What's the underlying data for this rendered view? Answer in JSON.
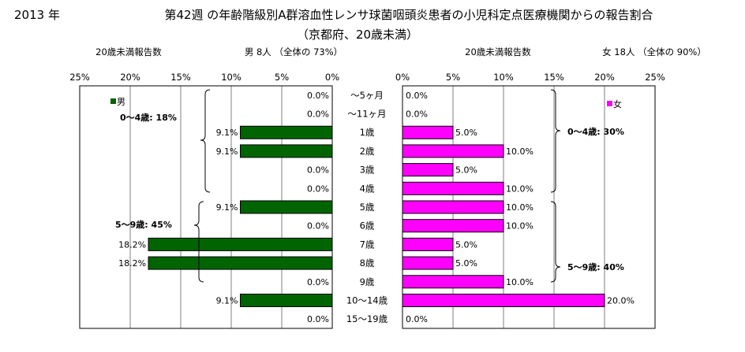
{
  "header": {
    "year": "2013 年",
    "title": "第42週 の年齢階級別A群溶血性レンサ球菌咽頭炎患者の小児科定点医療機関からの報告割合",
    "subtitle": "（京都府、20歳未満）"
  },
  "panel_headers": {
    "male_count_label": "20歳未満報告数",
    "male_summary": "男  8人 （全体の  73%）",
    "female_count_label": "20歳未満報告数",
    "female_summary": "女  18人 （全体の  90%）"
  },
  "legend": {
    "male": "男",
    "female": "女"
  },
  "groups": {
    "male_0_4": "0～4歳:  18%",
    "male_5_9": "5～9歳:  45%",
    "female_0_4": "0～4歳:  30%",
    "female_5_9": "5～9歳:  40%"
  },
  "colors": {
    "male": "#006400",
    "female": "#ff00ff",
    "border": "#000000",
    "grid": "#000000"
  },
  "chart_data": {
    "type": "bar",
    "orientation": "horizontal-pyramid",
    "categories": [
      "～5ヶ月",
      "～11ヶ月",
      "1歳",
      "2歳",
      "3歳",
      "4歳",
      "5歳",
      "6歳",
      "7歳",
      "8歳",
      "9歳",
      "10～14歳",
      "15～19歳"
    ],
    "xlim": [
      0,
      25
    ],
    "ticks": [
      "25%",
      "20%",
      "15%",
      "10%",
      "5%",
      "0%"
    ],
    "ticks_female": [
      "0%",
      "5%",
      "10%",
      "15%",
      "20%",
      "25%"
    ],
    "tick_values": [
      0,
      5,
      10,
      15,
      20,
      25
    ],
    "series": [
      {
        "name": "男",
        "values": [
          0,
          0,
          9.1,
          9.1,
          0,
          0,
          9.1,
          0,
          18.2,
          18.2,
          0,
          9.1,
          0
        ],
        "labels": [
          "0.0%",
          "0.0%",
          "9.1%",
          "9.1%",
          "0.0%",
          "0.0%",
          "9.1%",
          "0.0%",
          "18.2%",
          "18.2%",
          "0.0%",
          "9.1%",
          "0.0%"
        ]
      },
      {
        "name": "女",
        "values": [
          0,
          0,
          5,
          10,
          5,
          10,
          10,
          10,
          5,
          5,
          10,
          20,
          0
        ],
        "labels": [
          "0.0%",
          "0.0%",
          "5.0%",
          "10.0%",
          "5.0%",
          "10.0%",
          "10.0%",
          "10.0%",
          "5.0%",
          "5.0%",
          "10.0%",
          "20.0%",
          "0.0%"
        ]
      }
    ]
  }
}
